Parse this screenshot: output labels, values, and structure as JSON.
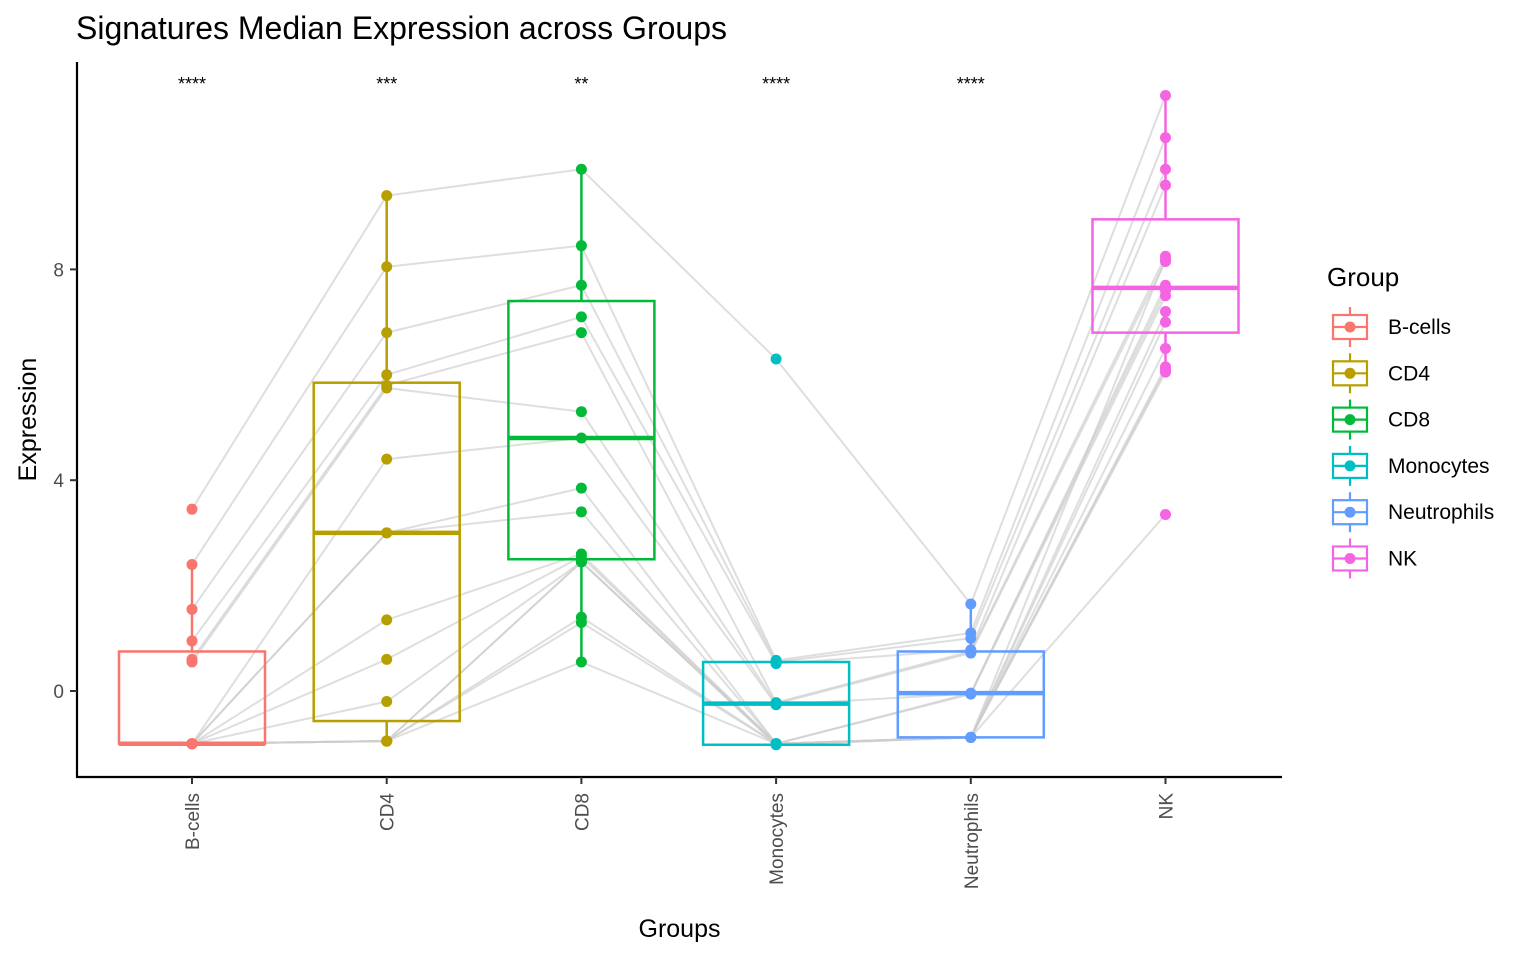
{
  "chart_data": {
    "type": "box",
    "title": "Signatures Median Expression across Groups",
    "xlabel": "Groups",
    "ylabel": "Expression",
    "categories": [
      "B-cells",
      "CD4",
      "CD8",
      "Monocytes",
      "Neutrophils",
      "NK"
    ],
    "yticks": [
      0,
      4,
      8
    ],
    "ylim": [
      -1.6,
      11.9
    ],
    "grid": false,
    "significance": [
      "****",
      "***",
      "**",
      "****",
      "****",
      ""
    ],
    "legend": {
      "title": "Group",
      "position": "right",
      "entries": [
        "B-cells",
        "CD4",
        "CD8",
        "Monocytes",
        "Neutrophils",
        "NK"
      ]
    },
    "colors": [
      "#F8766D",
      "#B79F00",
      "#00BA38",
      "#00BFC4",
      "#619CFF",
      "#F564E3"
    ],
    "line_color": "#cccccc",
    "boxes": [
      {
        "q1": -1.0,
        "median": -1.0,
        "q3": 0.75,
        "whisker_low": -1.0,
        "whisker_high": 2.4
      },
      {
        "q1": -0.57,
        "median": 3.0,
        "q3": 5.85,
        "whisker_low": -1.0,
        "whisker_high": 9.4
      },
      {
        "q1": 2.5,
        "median": 4.8,
        "q3": 7.4,
        "whisker_low": 0.55,
        "whisker_high": 9.9
      },
      {
        "q1": -1.02,
        "median": -0.24,
        "q3": 0.55,
        "whisker_low": -1.03,
        "whisker_high": 0.58
      },
      {
        "q1": -0.88,
        "median": -0.04,
        "q3": 0.75,
        "whisker_low": -0.88,
        "whisker_high": 1.65
      },
      {
        "q1": 6.8,
        "median": 7.65,
        "q3": 8.95,
        "whisker_low": 6.05,
        "whisker_high": 11.3
      }
    ],
    "points": [
      [
        3.45,
        2.4,
        1.55,
        0.95,
        0.6,
        0.55,
        -1.0,
        -1.0,
        -1.0,
        -1.0,
        -1.0,
        -1.0,
        -1.0,
        -1.0,
        -1.0,
        -1.0,
        -1.0
      ],
      [
        9.4,
        8.05,
        6.8,
        6.0,
        5.8,
        5.75,
        4.4,
        3.0,
        3.0,
        1.35,
        0.6,
        -0.2,
        -0.95,
        -0.95,
        -0.95,
        -0.95,
        -0.95
      ],
      [
        9.9,
        8.45,
        7.7,
        7.1,
        6.8,
        5.3,
        4.8,
        3.85,
        3.4,
        2.6,
        2.55,
        2.45,
        2.45,
        1.4,
        1.3,
        0.55,
        2.45
      ],
      [
        6.3,
        0.58,
        0.55,
        0.52,
        -0.22,
        -0.24,
        -0.26,
        -1.0,
        -1.0,
        -1.0,
        -1.0,
        -1.0,
        -1.0,
        -1.0,
        -1.0,
        -1.0,
        -1.02
      ],
      [
        1.65,
        1.1,
        1.0,
        0.78,
        0.75,
        0.72,
        -0.05,
        -0.04,
        -0.06,
        -0.88,
        -0.88,
        -0.88,
        -0.88,
        -0.88,
        -0.88,
        -0.88,
        -0.88
      ],
      [
        11.3,
        10.5,
        9.9,
        9.6,
        8.25,
        8.15,
        7.7,
        7.6,
        7.5,
        7.2,
        7.0,
        6.5,
        6.15,
        6.1,
        6.05,
        3.35,
        8.2
      ]
    ]
  }
}
